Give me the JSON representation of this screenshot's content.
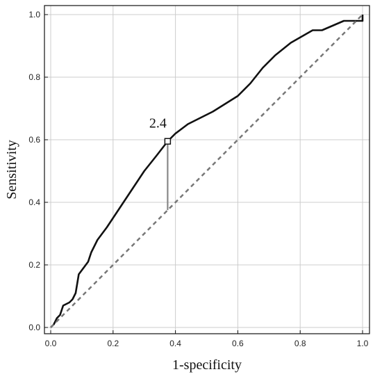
{
  "chart_data": {
    "type": "line",
    "title": "",
    "xlabel": "1-specificity",
    "ylabel": "Sensitivity",
    "xlim": [
      0,
      1
    ],
    "ylim": [
      0,
      1
    ],
    "xticks": [
      "0.0",
      "0.2",
      "0.4",
      "0.6",
      "0.8",
      "1.0"
    ],
    "yticks": [
      "0.0",
      "0.2",
      "0.4",
      "0.6",
      "0.8",
      "1.0"
    ],
    "grid": true,
    "legend": "none",
    "series": [
      {
        "kind": "roc",
        "color": "#111111",
        "style": "solid",
        "x": [
          0.0,
          0.01,
          0.02,
          0.03,
          0.04,
          0.06,
          0.07,
          0.08,
          0.09,
          0.12,
          0.13,
          0.15,
          0.18,
          0.22,
          0.26,
          0.3,
          0.34,
          0.375,
          0.4,
          0.44,
          0.52,
          0.6,
          0.64,
          0.68,
          0.72,
          0.77,
          0.84,
          0.87,
          0.94,
          1.0,
          1.0
        ],
        "y": [
          0.0,
          0.01,
          0.03,
          0.04,
          0.07,
          0.08,
          0.09,
          0.11,
          0.17,
          0.21,
          0.24,
          0.28,
          0.32,
          0.38,
          0.44,
          0.5,
          0.55,
          0.595,
          0.62,
          0.65,
          0.69,
          0.74,
          0.78,
          0.83,
          0.87,
          0.91,
          0.95,
          0.95,
          0.98,
          0.98,
          1.0
        ]
      },
      {
        "kind": "chance",
        "color": "#777777",
        "style": "dashed",
        "x": [
          0.0,
          1.0
        ],
        "y": [
          0.0,
          1.0
        ]
      }
    ],
    "cutoff": {
      "label": "2.4",
      "x": 0.375,
      "y": 0.595,
      "y_chance": 0.375
    }
  }
}
